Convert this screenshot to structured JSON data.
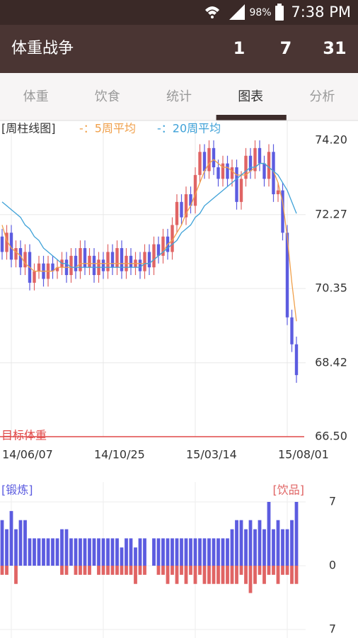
{
  "status_bar": {
    "battery": "98%",
    "time": "7:38 PM"
  },
  "app_bar": {
    "title": "体重战争",
    "counts": [
      "1",
      "7",
      "31"
    ]
  },
  "tabs": {
    "items": [
      "体重",
      "饮食",
      "统计",
      "图表",
      "分析"
    ],
    "selected": 3
  },
  "chart_data": [
    {
      "type": "candlestick",
      "title": "[周柱线图]",
      "categories": [
        null,
        null,
        "14/06/07",
        null,
        null,
        null,
        null,
        null,
        null,
        null,
        null,
        null,
        null,
        null,
        null,
        null,
        null,
        null,
        null,
        null,
        null,
        null,
        "14/10/25",
        null,
        null,
        null,
        null,
        null,
        null,
        null,
        null,
        null,
        null,
        null,
        null,
        null,
        null,
        null,
        null,
        null,
        null,
        null,
        "15/03/14",
        null,
        null,
        null,
        null,
        null,
        null,
        null,
        null,
        null,
        null,
        null,
        null,
        null,
        null,
        null,
        null,
        null,
        null,
        null,
        "15/08/01",
        null,
        null,
        null
      ],
      "open": [
        71.7,
        71.3,
        71.8,
        71.1,
        71.4,
        70.9,
        71.3,
        70.5,
        70.8,
        71.0,
        70.6,
        71.0,
        70.8,
        70.9,
        71.1,
        70.7,
        71.2,
        70.8,
        71.4,
        70.9,
        71.2,
        70.7,
        71.1,
        70.8,
        71.3,
        70.9,
        71.4,
        70.8,
        71.2,
        70.9,
        71.1,
        70.8,
        71.3,
        70.9,
        71.5,
        71.2,
        71.7,
        71.3,
        72.0,
        72.6,
        72.2,
        72.8,
        72.5,
        73.3,
        73.9,
        73.4,
        74.0,
        73.5,
        73.2,
        73.6,
        73.2,
        73.5,
        72.6,
        73.2,
        73.8,
        73.4,
        74.0,
        73.6,
        73.2,
        73.9,
        72.8,
        72.9,
        71.8,
        69.6,
        68.9,
        null
      ],
      "high": [
        71.9,
        72.0,
        72.0,
        71.6,
        71.6,
        71.5,
        71.5,
        71.0,
        71.2,
        71.2,
        71.2,
        71.2,
        71.1,
        71.3,
        71.3,
        71.4,
        71.4,
        71.6,
        71.6,
        71.4,
        71.4,
        71.3,
        71.3,
        71.5,
        71.5,
        71.6,
        71.6,
        71.4,
        71.4,
        71.3,
        71.3,
        71.5,
        71.5,
        71.7,
        71.7,
        71.9,
        71.9,
        72.2,
        72.8,
        72.8,
        73.0,
        73.0,
        73.5,
        74.1,
        74.1,
        74.2,
        74.2,
        73.7,
        73.8,
        73.8,
        73.7,
        73.7,
        73.4,
        74.0,
        74.0,
        74.2,
        74.2,
        73.8,
        74.1,
        74.1,
        73.1,
        73.1,
        72.0,
        69.8,
        69.1,
        null
      ],
      "low": [
        71.1,
        71.1,
        70.9,
        70.9,
        70.7,
        70.7,
        70.3,
        70.3,
        70.6,
        70.4,
        70.4,
        70.6,
        70.6,
        70.7,
        70.5,
        70.5,
        70.6,
        70.6,
        70.7,
        70.7,
        70.5,
        70.5,
        70.6,
        70.6,
        70.7,
        70.7,
        70.6,
        70.6,
        70.7,
        70.7,
        70.6,
        70.6,
        70.7,
        70.7,
        71.0,
        71.0,
        71.1,
        71.1,
        71.8,
        72.0,
        72.0,
        72.3,
        72.3,
        73.1,
        73.2,
        73.2,
        73.3,
        73.0,
        73.0,
        73.0,
        73.0,
        72.4,
        72.4,
        73.0,
        73.2,
        73.2,
        73.4,
        73.0,
        73.0,
        72.6,
        72.6,
        71.6,
        69.4,
        68.7,
        67.9,
        null
      ],
      "close": [
        71.3,
        71.8,
        71.1,
        71.4,
        70.9,
        71.3,
        70.5,
        70.8,
        71.0,
        70.6,
        71.0,
        70.8,
        70.9,
        71.1,
        70.7,
        71.2,
        70.8,
        71.4,
        70.9,
        71.2,
        70.7,
        71.1,
        70.8,
        71.3,
        70.9,
        71.4,
        70.8,
        71.2,
        70.9,
        71.1,
        70.8,
        71.3,
        70.9,
        71.5,
        71.2,
        71.7,
        71.3,
        72.0,
        72.6,
        72.2,
        72.8,
        72.5,
        73.3,
        73.9,
        73.4,
        74.0,
        73.5,
        73.2,
        73.6,
        73.2,
        73.5,
        72.6,
        73.2,
        73.8,
        73.4,
        74.0,
        73.6,
        73.2,
        73.9,
        72.8,
        72.9,
        71.8,
        69.6,
        68.9,
        68.1,
        null
      ],
      "up_color": "#e06464",
      "down_color": "#5c5ce0",
      "series": [
        {
          "name": "-：5周平均",
          "color": "#f0a04b",
          "values": [
            72.0,
            71.6,
            71.4,
            71.3,
            71.2,
            71.0,
            70.9,
            70.8,
            70.8,
            70.8,
            70.8,
            70.8,
            70.9,
            70.9,
            70.9,
            70.9,
            70.9,
            71.0,
            71.0,
            71.0,
            71.0,
            71.0,
            71.0,
            71.0,
            71.0,
            71.0,
            71.0,
            71.0,
            71.0,
            71.0,
            71.0,
            71.0,
            71.0,
            71.1,
            71.2,
            71.3,
            71.5,
            71.6,
            71.8,
            72.0,
            72.3,
            72.5,
            72.8,
            73.1,
            73.4,
            73.6,
            73.7,
            73.6,
            73.5,
            73.5,
            73.4,
            73.3,
            73.3,
            73.3,
            73.4,
            73.5,
            73.6,
            73.6,
            73.5,
            73.4,
            73.1,
            72.6,
            71.7,
            70.5,
            69.5,
            null
          ]
        },
        {
          "name": "-：20周平均",
          "color": "#3fa2d8",
          "values": [
            72.6,
            72.5,
            72.4,
            72.3,
            72.2,
            72.0,
            71.9,
            71.7,
            71.6,
            71.4,
            71.3,
            71.2,
            71.1,
            71.0,
            71.0,
            70.9,
            70.9,
            70.9,
            70.9,
            70.9,
            70.9,
            70.9,
            70.9,
            70.9,
            70.9,
            70.9,
            70.9,
            70.9,
            70.9,
            70.9,
            70.9,
            71.0,
            71.0,
            71.1,
            71.2,
            71.3,
            71.4,
            71.5,
            71.6,
            71.8,
            71.9,
            72.0,
            72.2,
            72.3,
            72.5,
            72.6,
            72.7,
            72.8,
            72.9,
            73.0,
            73.1,
            73.2,
            73.3,
            73.4,
            73.5,
            73.5,
            73.6,
            73.6,
            73.5,
            73.4,
            73.3,
            73.1,
            72.9,
            72.6,
            72.3,
            null
          ]
        }
      ],
      "target": 66.5,
      "target_label": "目标体重",
      "target_color": "#e04848",
      "ylim": [
        66.5,
        74.2
      ],
      "yticks": [
        {
          "value": 74.2,
          "label": "74.20"
        },
        72.27,
        70.35,
        68.42,
        {
          "value": 66.5,
          "label": "66.50"
        }
      ],
      "grid": true
    },
    {
      "type": "bar",
      "series": [
        {
          "name": "[锻炼]",
          "color": "#5c5ce0",
          "values": [
            5,
            4,
            6,
            4,
            5,
            5,
            3,
            3,
            3,
            3,
            3,
            3,
            3,
            4,
            4,
            3,
            3,
            3,
            3,
            3,
            3,
            3,
            3,
            3,
            3,
            3,
            2,
            3,
            3,
            2,
            3,
            3,
            0,
            3,
            3,
            3,
            3,
            3,
            3,
            3,
            3,
            3,
            3,
            3,
            3,
            3,
            3,
            3,
            3,
            3,
            4,
            5,
            5,
            4,
            5,
            4,
            5,
            4,
            7,
            4,
            5,
            4,
            4,
            5,
            7,
            null
          ]
        },
        {
          "name": "[饮品]",
          "color": "#e06464",
          "values": [
            -1,
            -1,
            0,
            -2,
            0,
            0,
            0,
            0,
            0,
            0,
            0,
            0,
            0,
            -1,
            -1,
            0,
            -1,
            -1,
            -1,
            -1,
            0,
            -1,
            -1,
            -1,
            -1,
            -1,
            -1,
            -1,
            -1,
            -2,
            -1,
            -1,
            0,
            0,
            -1,
            -1,
            -2,
            -1,
            -2,
            -1,
            -2,
            -1,
            -2,
            -1,
            -2,
            -2,
            -2,
            -2,
            -2,
            -2,
            -2,
            -2,
            -1,
            -2,
            -3,
            -2,
            -1,
            -2,
            -1,
            -1,
            -2,
            -1,
            -1,
            -2,
            -2,
            null
          ]
        }
      ],
      "ylim": [
        -7,
        7
      ],
      "yticks": [
        7,
        0,
        {
          "value": -7,
          "label": "7"
        }
      ],
      "grid": true
    }
  ]
}
